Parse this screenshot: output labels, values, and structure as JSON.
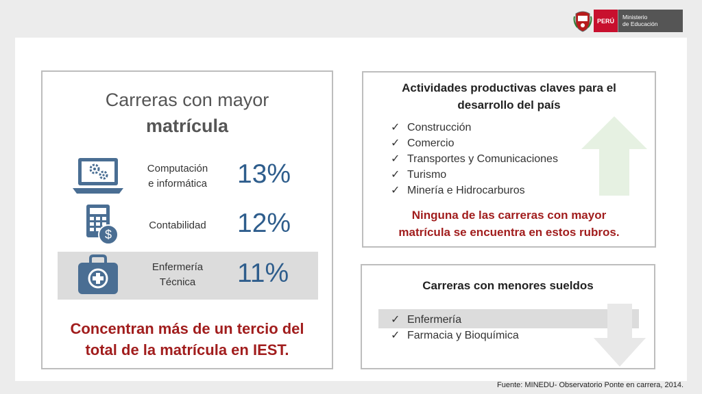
{
  "header": {
    "country": "PERÚ",
    "ministry_line1": "Ministerio",
    "ministry_line2": "de Educación"
  },
  "left_panel": {
    "title_line1": "Carreras con mayor",
    "title_line2": "matrícula",
    "careers": [
      {
        "line1": "Computación",
        "line2": "e informática",
        "percent": "13%",
        "icon": "laptop-gears-icon"
      },
      {
        "line1": "Contabilidad",
        "line2": "",
        "percent": "12%",
        "icon": "calculator-dollar-icon"
      },
      {
        "line1": "Enfermería",
        "line2": "Técnica",
        "percent": "11%",
        "icon": "medical-kit-icon"
      }
    ],
    "conclusion_line1": "Concentran más de un tercio del",
    "conclusion_line2": "total de la matrícula en IEST."
  },
  "top_right": {
    "title_line1": "Actividades productivas claves para el",
    "title_line2": "desarrollo del país",
    "items": [
      "Construcción",
      "Comercio",
      "Transportes y Comunicaciones",
      "Turismo",
      "Minería e Hidrocarburos"
    ],
    "conclusion_line1": "Ninguna de las carreras con mayor",
    "conclusion_line2": "matrícula se encuentra en estos rubros."
  },
  "bottom_right": {
    "title": "Carreras con menores sueldos",
    "items": [
      "Enfermería",
      "Farmacia y Bioquímica"
    ]
  },
  "check": "✓",
  "source": "Fuente: MINEDU- Observatorio Ponte en carrera, 2014.",
  "colors": {
    "accent_red": "#a11d1d",
    "percent_blue": "#2e5d8c",
    "icon_blue": "#4a6e93",
    "arrow_green": "#e6f1e2"
  }
}
